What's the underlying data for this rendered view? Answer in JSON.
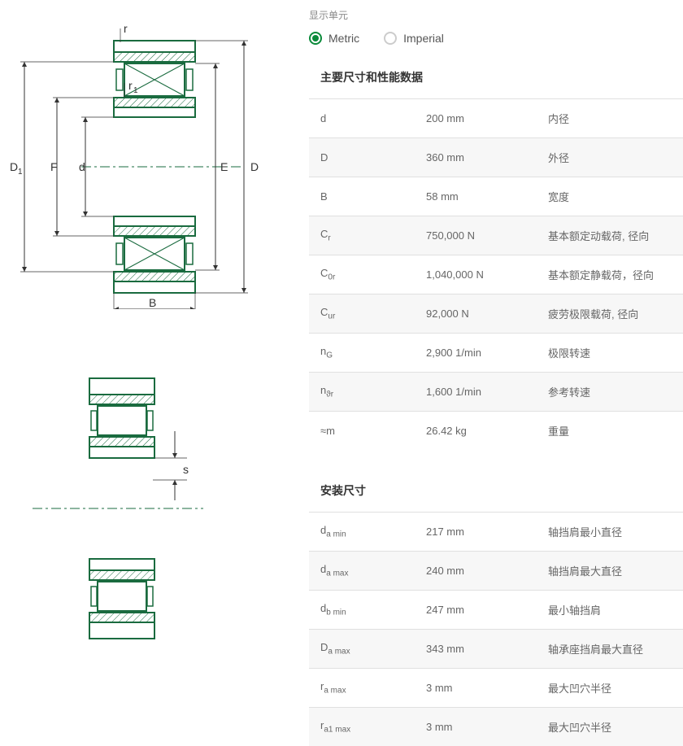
{
  "unit_selector": {
    "label": "显示单元",
    "options": [
      {
        "label": "Metric",
        "selected": true
      },
      {
        "label": "Imperial",
        "selected": false
      }
    ]
  },
  "sections": [
    {
      "title": "主要尺寸和性能数据",
      "rows": [
        {
          "sym": "d",
          "sub": "",
          "value": "200 mm",
          "desc": "内径"
        },
        {
          "sym": "D",
          "sub": "",
          "value": "360 mm",
          "desc": "外径"
        },
        {
          "sym": "B",
          "sub": "",
          "value": "58 mm",
          "desc": "宽度"
        },
        {
          "sym": "C",
          "sub": "r",
          "value": "750,000 N",
          "desc": "基本额定动载荷, 径向"
        },
        {
          "sym": "C",
          "sub": "0r",
          "value": "1,040,000 N",
          "desc": "基本额定静载荷，径向"
        },
        {
          "sym": "C",
          "sub": "ur",
          "value": "92,000 N",
          "desc": "疲劳极限载荷, 径向"
        },
        {
          "sym": "n",
          "sub": "G",
          "value": "2,900 1/min",
          "desc": "极限转速"
        },
        {
          "sym": "n",
          "sub": "ϑr",
          "value": "1,600 1/min",
          "desc": "参考转速"
        },
        {
          "sym": "≈m",
          "sub": "",
          "value": "26.42 kg",
          "desc": "重量"
        }
      ]
    },
    {
      "title": "安装尺寸",
      "rows": [
        {
          "sym": "d",
          "sub": "a min",
          "value": "217 mm",
          "desc": "轴挡肩最小直径"
        },
        {
          "sym": "d",
          "sub": "a max",
          "value": "240 mm",
          "desc": "轴挡肩最大直径"
        },
        {
          "sym": "d",
          "sub": "b min",
          "value": "247 mm",
          "desc": "最小轴挡肩"
        },
        {
          "sym": "D",
          "sub": "a max",
          "value": "343 mm",
          "desc": "轴承座挡肩最大直径"
        },
        {
          "sym": "r",
          "sub": "a max",
          "value": "3 mm",
          "desc": "最大凹穴半径"
        },
        {
          "sym": "r",
          "sub": "a1 max",
          "value": "3 mm",
          "desc": "最大凹穴半径"
        }
      ]
    }
  ],
  "diagrams": {
    "stroke": "#1a6b3f",
    "hatch": "#1a6b3f",
    "label_color": "#333",
    "top": {
      "labels": [
        "D₁",
        "F",
        "d",
        "E",
        "D",
        "r",
        "r₁",
        "B"
      ]
    },
    "bottom": {
      "labels": [
        "s"
      ]
    }
  }
}
